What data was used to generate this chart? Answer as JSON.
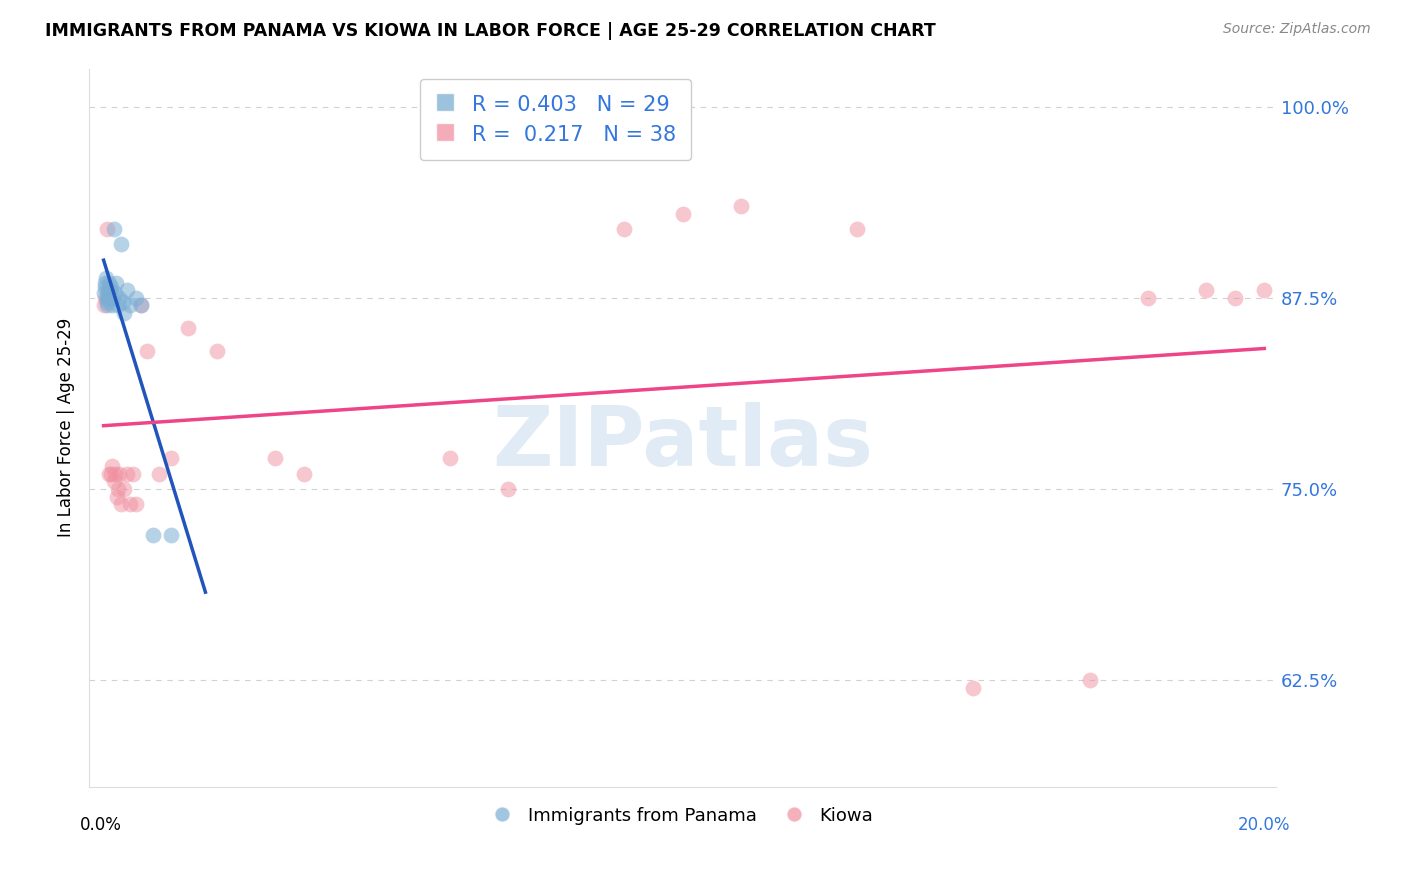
{
  "title": "IMMIGRANTS FROM PANAMA VS KIOWA IN LABOR FORCE | AGE 25-29 CORRELATION CHART",
  "source": "Source: ZipAtlas.com",
  "ylabel": "In Labor Force | Age 25-29",
  "xlim": [
    -0.002,
    0.202
  ],
  "ylim": [
    0.555,
    1.025
  ],
  "yticks": [
    0.625,
    0.75,
    0.875,
    1.0
  ],
  "ytick_labels": [
    "62.5%",
    "75.0%",
    "87.5%",
    "100.0%"
  ],
  "xtick_positions": [
    0.0,
    0.04,
    0.08,
    0.12,
    0.16,
    0.2
  ],
  "watermark_text": "ZIPatlas",
  "legend_blue_r": "R = 0.403",
  "legend_blue_n": "N = 29",
  "legend_pink_r": "R =  0.217",
  "legend_pink_n": "N = 38",
  "blue_scatter_color": "#7BAED4",
  "pink_scatter_color": "#F090A0",
  "blue_line_color": "#2255BB",
  "pink_line_color": "#EE4488",
  "legend_label_blue": "Immigrants from Panama",
  "legend_label_pink": "Kiowa",
  "panama_x": [
    0.0005,
    0.0007,
    0.0008,
    0.0009,
    0.001,
    0.001,
    0.0011,
    0.0012,
    0.0013,
    0.0014,
    0.0015,
    0.0016,
    0.0018,
    0.002,
    0.0021,
    0.0022,
    0.0025,
    0.0027,
    0.003,
    0.0032,
    0.0035,
    0.0038,
    0.004,
    0.0045,
    0.005,
    0.006,
    0.007,
    0.009,
    0.012
  ],
  "panama_y": [
    0.878,
    0.882,
    0.885,
    0.888,
    0.87,
    0.875,
    0.872,
    0.878,
    0.88,
    0.885,
    0.875,
    0.88,
    0.882,
    0.87,
    0.875,
    0.92,
    0.878,
    0.885,
    0.87,
    0.875,
    0.91,
    0.872,
    0.865,
    0.88,
    0.87,
    0.875,
    0.87,
    0.72,
    0.72
  ],
  "kiowa_x": [
    0.0005,
    0.0008,
    0.001,
    0.0012,
    0.0015,
    0.0018,
    0.002,
    0.0022,
    0.0025,
    0.0028,
    0.003,
    0.0032,
    0.0035,
    0.004,
    0.0045,
    0.005,
    0.0055,
    0.006,
    0.007,
    0.008,
    0.01,
    0.012,
    0.015,
    0.02,
    0.03,
    0.06,
    0.09,
    0.1,
    0.11,
    0.13,
    0.15,
    0.17,
    0.18,
    0.19,
    0.195,
    0.2,
    0.035,
    0.07
  ],
  "kiowa_y": [
    0.87,
    0.875,
    0.92,
    0.875,
    0.76,
    0.76,
    0.765,
    0.755,
    0.76,
    0.745,
    0.75,
    0.76,
    0.74,
    0.75,
    0.76,
    0.74,
    0.76,
    0.74,
    0.87,
    0.84,
    0.76,
    0.77,
    0.855,
    0.84,
    0.77,
    0.77,
    0.92,
    0.93,
    0.935,
    0.92,
    0.62,
    0.625,
    0.875,
    0.88,
    0.875,
    0.88,
    0.76,
    0.75
  ]
}
